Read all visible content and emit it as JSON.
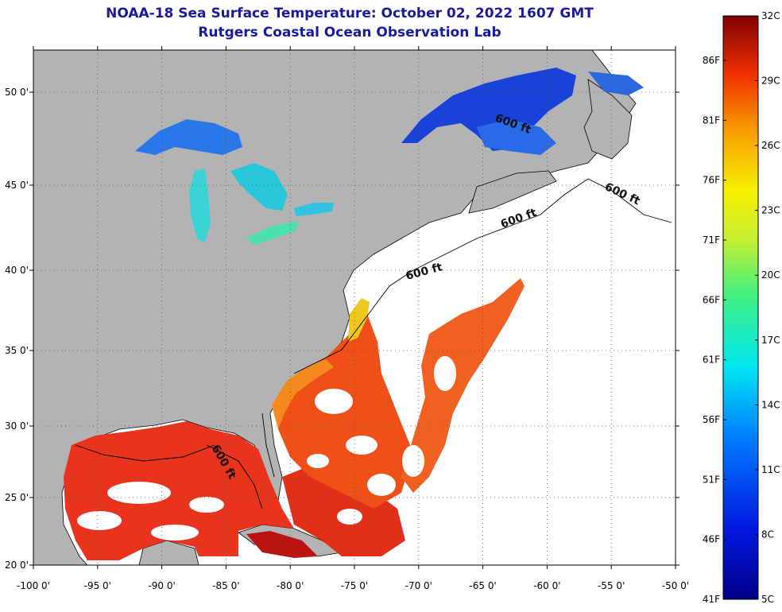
{
  "header": {
    "title": "NOAA-18 Sea Surface Temperature:  October 02, 2022 1607 GMT",
    "subtitle": "Rutgers Coastal Ocean Observation Lab"
  },
  "map": {
    "lon_labels": [
      "-100 0'",
      "-95 0'",
      "-90 0'",
      "-85 0'",
      "-80 0'",
      "-75 0'",
      "-70 0'",
      "-65 0'",
      "-60 0'",
      "-55 0'",
      "-50 0'"
    ],
    "lat_labels": [
      "50 0'",
      "45 0'",
      "40 0'",
      "35 0'",
      "30 0'",
      "25 0'",
      "20 0'"
    ],
    "isobath_labels": [
      "600 ft",
      "600 ft",
      "600 ft",
      "600 ft",
      "600 ft"
    ],
    "colors": {
      "land": "#b3b3b3",
      "cloud": "#ffffff",
      "gulf": "#e8341c",
      "gulf_dark": "#c41a10",
      "gulfstream": "#ee5a18",
      "shelf_south": "#f48a1e",
      "great_lakes": "#30d8d0",
      "st_lawrence": "#1842d8"
    }
  },
  "colorbar": {
    "celsius_labels": [
      "32C",
      "29C",
      "26C",
      "23C",
      "20C",
      "17C",
      "14C",
      "11C",
      "8C",
      "5C"
    ],
    "fahrenheit_labels": [
      "86F",
      "81F",
      "76F",
      "71F",
      "66F",
      "61F",
      "56F",
      "51F",
      "46F",
      "41F"
    ],
    "min_c": 5,
    "max_c": 32
  }
}
